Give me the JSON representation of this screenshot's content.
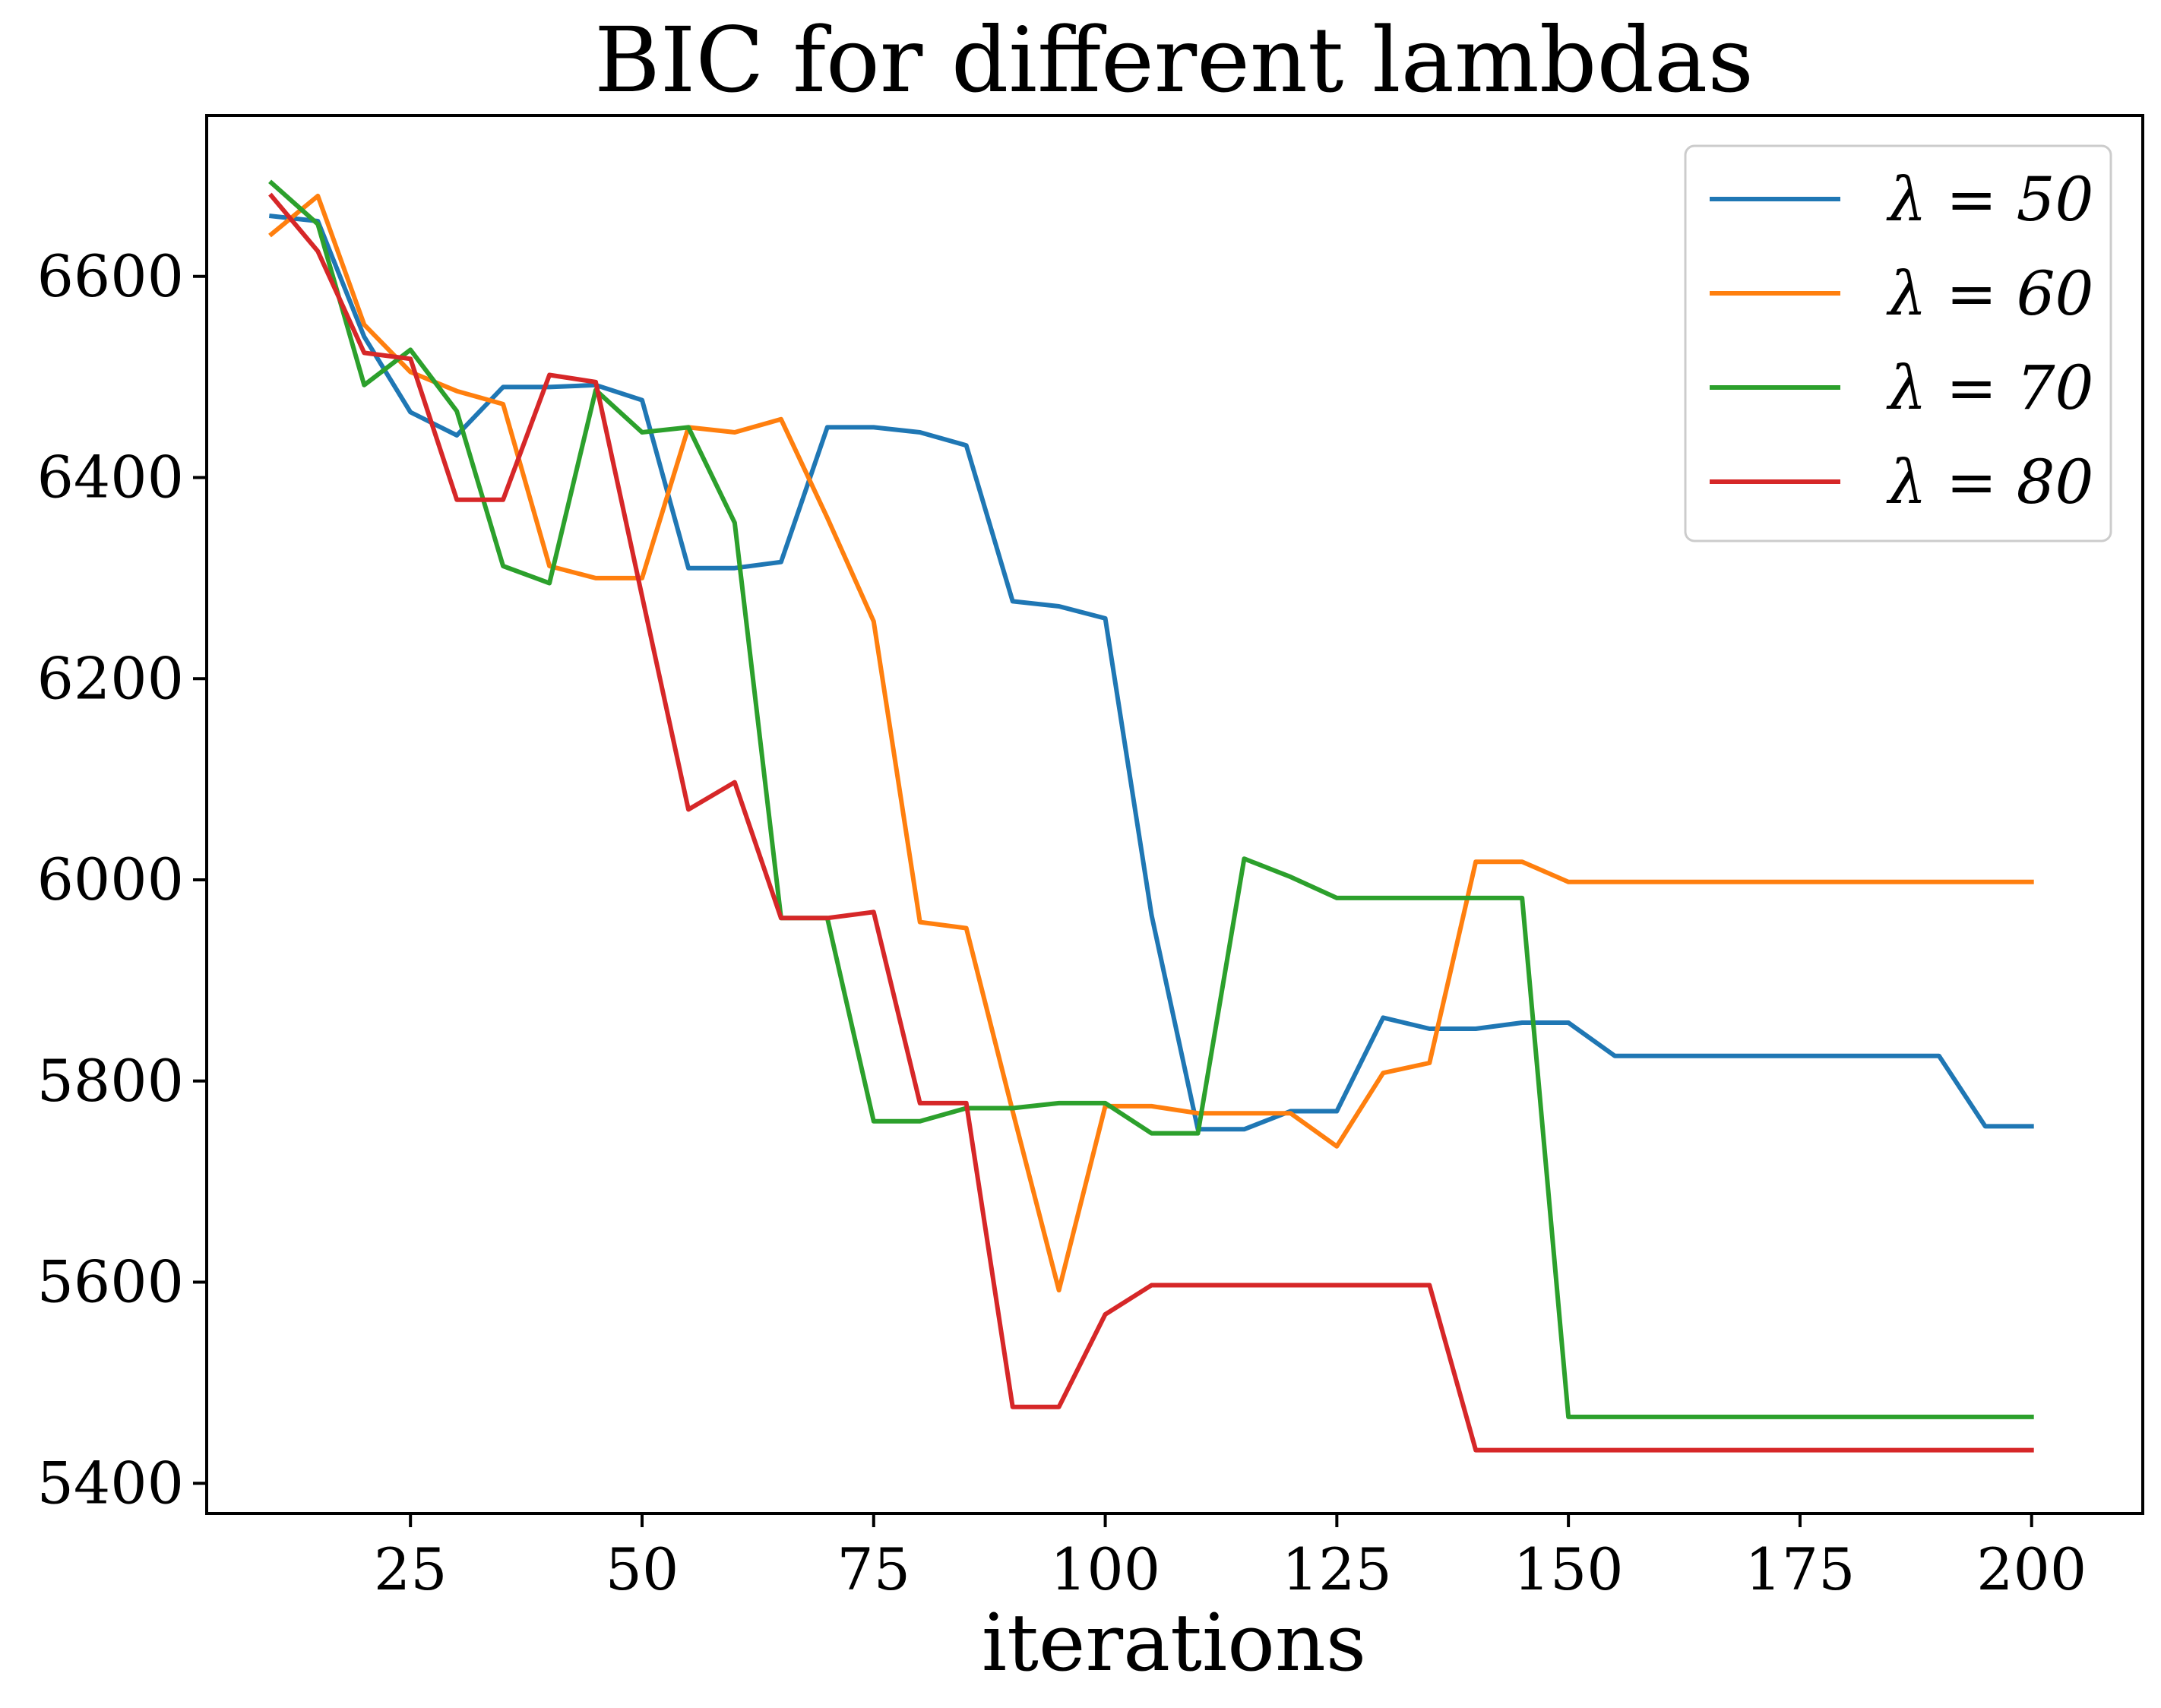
{
  "chart_data": {
    "type": "line",
    "title": "BIC for different lambdas",
    "xlabel": "iterations",
    "ylabel": "",
    "xlim": [
      3,
      212
    ],
    "ylim": [
      5370,
      6760
    ],
    "xticks": [
      25,
      50,
      75,
      100,
      125,
      150,
      175,
      200
    ],
    "yticks": [
      5400,
      5600,
      5800,
      6000,
      6200,
      6400,
      6600
    ],
    "grid": false,
    "legend_position": "upper right",
    "x": [
      10,
      15,
      20,
      25,
      30,
      35,
      40,
      45,
      50,
      55,
      60,
      65,
      70,
      75,
      80,
      85,
      90,
      95,
      100,
      105,
      110,
      115,
      120,
      125,
      130,
      135,
      140,
      145,
      150,
      155,
      160,
      165,
      170,
      175,
      180,
      185,
      190,
      195,
      200
    ],
    "series": [
      {
        "name": "λ = 50",
        "color": "#1f77b4",
        "values": [
          6660,
          6655,
          6540,
          6465,
          6442,
          6490,
          6490,
          6492,
          6477,
          6310,
          6310,
          6316,
          6450,
          6450,
          6445,
          6432,
          6277,
          6272,
          6260,
          5965,
          5752,
          5752,
          5770,
          5770,
          5863,
          5852,
          5852,
          5858,
          5858,
          5825,
          5825,
          5825,
          5825,
          5825,
          5825,
          5825,
          5825,
          5755,
          5755
        ]
      },
      {
        "name": "λ = 60",
        "color": "#ff7f0e",
        "values": [
          6642,
          6680,
          6552,
          6505,
          6486,
          6473,
          6312,
          6300,
          6300,
          6450,
          6445,
          6458,
          6360,
          6257,
          5958,
          5952,
          5770,
          5592,
          5775,
          5775,
          5768,
          5768,
          5768,
          5735,
          5808,
          5818,
          6018,
          6018,
          5998,
          5998,
          5998,
          5998,
          5998,
          5998,
          5998,
          5998,
          5998,
          5998,
          5998
        ]
      },
      {
        "name": "λ = 70",
        "color": "#2ca02c",
        "values": [
          6693,
          6652,
          6492,
          6527,
          6466,
          6312,
          6295,
          6487,
          6445,
          6450,
          6355,
          5962,
          5962,
          5760,
          5760,
          5773,
          5773,
          5778,
          5778,
          5748,
          5748,
          6021,
          6003,
          5982,
          5982,
          5982,
          5982,
          5982,
          5466,
          5466,
          5466,
          5466,
          5466,
          5466,
          5466,
          5466,
          5466,
          5466,
          5466
        ]
      },
      {
        "name": "λ = 80",
        "color": "#d62728",
        "values": [
          6680,
          6625,
          6524,
          6518,
          6378,
          6378,
          6502,
          6495,
          6282,
          6070,
          6097,
          5962,
          5962,
          5968,
          5778,
          5778,
          5476,
          5476,
          5568,
          5597,
          5597,
          5597,
          5597,
          5597,
          5597,
          5597,
          5433,
          5433,
          5433,
          5433,
          5433,
          5433,
          5433,
          5433,
          5433,
          5433,
          5433,
          5433,
          5433
        ]
      }
    ]
  }
}
